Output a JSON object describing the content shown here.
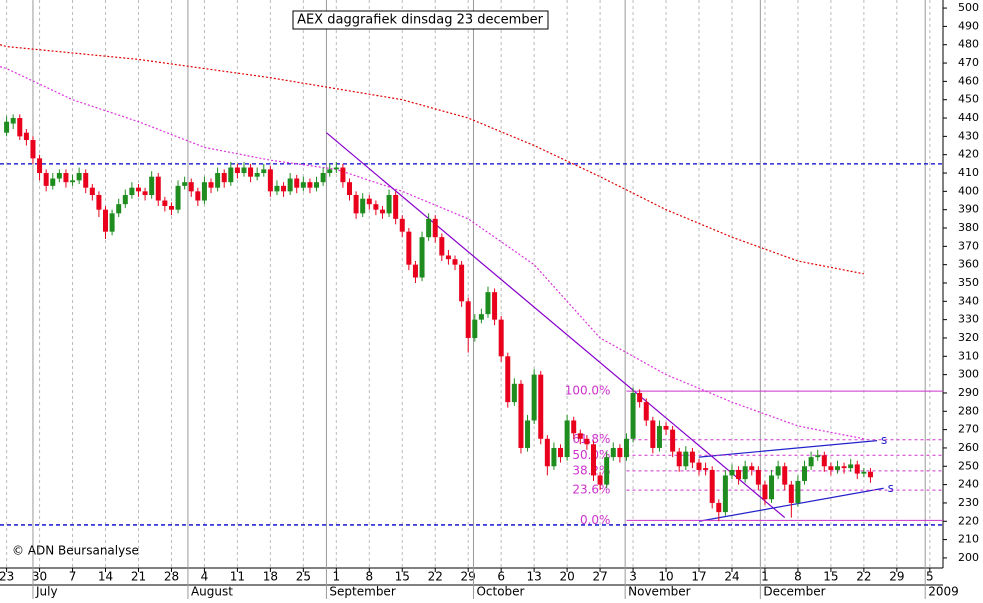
{
  "chart_data": {
    "type": "candlestick",
    "title": "AEX daggrafiek dinsdag 23 december",
    "annotation": "© ADN Beursanalyse",
    "up_color": "#1e8c1e",
    "down_color": "#e8001c",
    "xlim": [
      -1,
      142
    ],
    "ylim": [
      194.5,
      504.4
    ],
    "yticks": [
      200,
      210,
      220,
      230,
      240,
      250,
      260,
      270,
      280,
      290,
      300,
      310,
      320,
      330,
      340,
      350,
      360,
      370,
      380,
      390,
      400,
      410,
      420,
      430,
      440,
      450,
      460,
      470,
      480,
      490,
      500
    ],
    "xticks": [
      {
        "value": 0,
        "label": "23"
      },
      {
        "value": 5,
        "label": "30"
      },
      {
        "value": 10,
        "label": "7"
      },
      {
        "value": 15,
        "label": "14"
      },
      {
        "value": 20,
        "label": "21"
      },
      {
        "value": 25,
        "label": "28"
      },
      {
        "value": 30,
        "label": "4"
      },
      {
        "value": 35,
        "label": "11"
      },
      {
        "value": 40,
        "label": "18"
      },
      {
        "value": 45,
        "label": "25"
      },
      {
        "value": 50,
        "label": "1"
      },
      {
        "value": 55,
        "label": "8"
      },
      {
        "value": 60,
        "label": "15"
      },
      {
        "value": 65,
        "label": "22"
      },
      {
        "value": 70,
        "label": "29"
      },
      {
        "value": 75,
        "label": "6"
      },
      {
        "value": 80,
        "label": "13"
      },
      {
        "value": 85,
        "label": "20"
      },
      {
        "value": 90,
        "label": "27"
      },
      {
        "value": 95,
        "label": "3"
      },
      {
        "value": 100,
        "label": "10"
      },
      {
        "value": 105,
        "label": "17"
      },
      {
        "value": 110,
        "label": "24"
      },
      {
        "value": 115,
        "label": "1"
      },
      {
        "value": 120,
        "label": "8"
      },
      {
        "value": 125,
        "label": "15"
      },
      {
        "value": 130,
        "label": "22"
      },
      {
        "value": 135,
        "label": "29"
      },
      {
        "value": 140,
        "label": "5"
      }
    ],
    "months": [
      {
        "value": 4,
        "label": "July"
      },
      {
        "value": 27.5,
        "label": "August"
      },
      {
        "value": 48.5,
        "label": "September"
      },
      {
        "value": 70.8,
        "label": "October"
      },
      {
        "value": 93.8,
        "label": "November"
      },
      {
        "value": 114.3,
        "label": "December"
      },
      {
        "value": 139.3,
        "label": "2009"
      }
    ],
    "x": [
      0,
      1,
      2,
      3,
      4,
      5,
      6,
      7,
      8,
      9,
      10,
      11,
      12,
      13,
      14,
      15,
      16,
      17,
      18,
      19,
      20,
      21,
      22,
      23,
      24,
      25,
      26,
      27,
      28,
      29,
      30,
      31,
      32,
      33,
      34,
      35,
      36,
      37,
      38,
      39,
      40,
      41,
      42,
      43,
      44,
      45,
      46,
      47,
      48,
      49,
      50,
      51,
      52,
      53,
      54,
      55,
      56,
      57,
      58,
      59,
      60,
      61,
      62,
      63,
      64,
      65,
      66,
      67,
      68,
      69,
      70,
      71,
      72,
      73,
      74,
      75,
      76,
      77,
      78,
      79,
      80,
      81,
      82,
      83,
      84,
      85,
      86,
      87,
      88,
      89,
      90,
      91,
      92,
      93,
      94,
      95,
      96,
      97,
      98,
      99,
      100,
      101,
      102,
      103,
      104,
      105,
      106,
      107,
      108,
      109,
      110,
      111,
      112,
      113,
      114,
      115,
      116,
      117,
      118,
      119,
      120,
      121,
      122,
      123,
      124,
      125,
      126,
      127,
      128,
      129,
      130,
      131
    ],
    "ohlc": [
      [
        432,
        441,
        430,
        438
      ],
      [
        437,
        442,
        434,
        440
      ],
      [
        440,
        442,
        428,
        430
      ],
      [
        432,
        434,
        425,
        428
      ],
      [
        428,
        430,
        415,
        418
      ],
      [
        418,
        420,
        406,
        410
      ],
      [
        410,
        412,
        400,
        403
      ],
      [
        403,
        410,
        401,
        407
      ],
      [
        407,
        412,
        405,
        410
      ],
      [
        410,
        412,
        402,
        405
      ],
      [
        405,
        409,
        403,
        406
      ],
      [
        406,
        413,
        404,
        410
      ],
      [
        410,
        412,
        399,
        402
      ],
      [
        402,
        404,
        395,
        398
      ],
      [
        398,
        400,
        386,
        390
      ],
      [
        390,
        392,
        374,
        378
      ],
      [
        378,
        390,
        376,
        388
      ],
      [
        388,
        396,
        386,
        393
      ],
      [
        393,
        401,
        391,
        398
      ],
      [
        398,
        405,
        396,
        402
      ],
      [
        402,
        404,
        397,
        400
      ],
      [
        400,
        402,
        395,
        398
      ],
      [
        398,
        411,
        396,
        408
      ],
      [
        408,
        410,
        392,
        395
      ],
      [
        395,
        397,
        389,
        392
      ],
      [
        392,
        394,
        387,
        390
      ],
      [
        390,
        406,
        388,
        403
      ],
      [
        403,
        408,
        401,
        405
      ],
      [
        405,
        407,
        397,
        400
      ],
      [
        400,
        402,
        392,
        395
      ],
      [
        395,
        408,
        393,
        405
      ],
      [
        405,
        407,
        399,
        402
      ],
      [
        402,
        413,
        400,
        410
      ],
      [
        410,
        412,
        402,
        405
      ],
      [
        405,
        416,
        403,
        413
      ],
      [
        413,
        415,
        407,
        410
      ],
      [
        410,
        416,
        408,
        413
      ],
      [
        413,
        415,
        405,
        408
      ],
      [
        408,
        413,
        406,
        410
      ],
      [
        410,
        415,
        408,
        412
      ],
      [
        412,
        414,
        397,
        400
      ],
      [
        400,
        406,
        398,
        403
      ],
      [
        403,
        405,
        397,
        400
      ],
      [
        400,
        410,
        398,
        407
      ],
      [
        407,
        409,
        399,
        402
      ],
      [
        402,
        408,
        400,
        405
      ],
      [
        405,
        407,
        399,
        402
      ],
      [
        402,
        408,
        400,
        405
      ],
      [
        405,
        413,
        403,
        410
      ],
      [
        410,
        415,
        408,
        412
      ],
      [
        412,
        416,
        410,
        413
      ],
      [
        413,
        415,
        402,
        405
      ],
      [
        405,
        407,
        395,
        398
      ],
      [
        398,
        400,
        385,
        388
      ],
      [
        388,
        399,
        386,
        396
      ],
      [
        396,
        398,
        390,
        393
      ],
      [
        393,
        395,
        387,
        390
      ],
      [
        390,
        392,
        385,
        388
      ],
      [
        388,
        401,
        386,
        398
      ],
      [
        398,
        400,
        382,
        385
      ],
      [
        385,
        387,
        375,
        378
      ],
      [
        378,
        380,
        357,
        360
      ],
      [
        360,
        362,
        350,
        353
      ],
      [
        353,
        378,
        351,
        375
      ],
      [
        375,
        388,
        373,
        385
      ],
      [
        385,
        387,
        372,
        375
      ],
      [
        375,
        377,
        362,
        365
      ],
      [
        365,
        368,
        360,
        363
      ],
      [
        363,
        365,
        357,
        360
      ],
      [
        360,
        362,
        337,
        340
      ],
      [
        340,
        342,
        312,
        320
      ],
      [
        320,
        333,
        318,
        330
      ],
      [
        330,
        336,
        328,
        333
      ],
      [
        333,
        348,
        331,
        345
      ],
      [
        345,
        347,
        327,
        330
      ],
      [
        330,
        332,
        307,
        310
      ],
      [
        310,
        312,
        282,
        285
      ],
      [
        285,
        298,
        283,
        295
      ],
      [
        295,
        297,
        257,
        260
      ],
      [
        260,
        278,
        258,
        275
      ],
      [
        275,
        303,
        273,
        300
      ],
      [
        300,
        302,
        262,
        265
      ],
      [
        265,
        267,
        245,
        250
      ],
      [
        250,
        263,
        248,
        260
      ],
      [
        260,
        262,
        252,
        255
      ],
      [
        255,
        278,
        253,
        275
      ],
      [
        275,
        277,
        265,
        268
      ],
      [
        268,
        270,
        262,
        265
      ],
      [
        265,
        267,
        259,
        262
      ],
      [
        262,
        264,
        242,
        245
      ],
      [
        245,
        247,
        237,
        240
      ],
      [
        240,
        258,
        238,
        255
      ],
      [
        255,
        263,
        253,
        260
      ],
      [
        260,
        262,
        252,
        255
      ],
      [
        255,
        268,
        253,
        265
      ],
      [
        265,
        293,
        263,
        290
      ],
      [
        290,
        292,
        282,
        285
      ],
      [
        285,
        287,
        272,
        275
      ],
      [
        275,
        277,
        257,
        260
      ],
      [
        260,
        275,
        258,
        272
      ],
      [
        272,
        274,
        267,
        270
      ],
      [
        270,
        272,
        255,
        258
      ],
      [
        258,
        260,
        247,
        250
      ],
      [
        250,
        261,
        248,
        258
      ],
      [
        258,
        260,
        249,
        252
      ],
      [
        252,
        254,
        245,
        248
      ],
      [
        249,
        252,
        245,
        248
      ],
      [
        248,
        250,
        227,
        230
      ],
      [
        230,
        232,
        220,
        225
      ],
      [
        225,
        248,
        223,
        245
      ],
      [
        245,
        251,
        243,
        248
      ],
      [
        248,
        250,
        240,
        243
      ],
      [
        243,
        253,
        241,
        250
      ],
      [
        250,
        252,
        245,
        248
      ],
      [
        248,
        250,
        237,
        240
      ],
      [
        240,
        242,
        229,
        232
      ],
      [
        232,
        248,
        230,
        245
      ],
      [
        245,
        253,
        243,
        250
      ],
      [
        250,
        252,
        237,
        240
      ],
      [
        240,
        242,
        222,
        230
      ],
      [
        230,
        245,
        228,
        242
      ],
      [
        242,
        253,
        240,
        250
      ],
      [
        250,
        258,
        248,
        255
      ],
      [
        255,
        259,
        253,
        256
      ],
      [
        256,
        258,
        247,
        250
      ],
      [
        250,
        252,
        245,
        248
      ],
      [
        248,
        253,
        246,
        250
      ],
      [
        250,
        252,
        246,
        249
      ],
      [
        249,
        254,
        247,
        251
      ],
      [
        251,
        253,
        243,
        246
      ],
      [
        246,
        249,
        244,
        247
      ],
      [
        247,
        249,
        241,
        244
      ]
    ],
    "moving_averages": [
      {
        "color": "#e00000",
        "x": [
          -1,
          0,
          20,
          40,
          60,
          70,
          80,
          90,
          100,
          110,
          120,
          130
        ],
        "values": [
          480,
          479,
          472,
          462,
          450,
          440,
          425,
          408,
          390,
          375,
          362,
          355
        ]
      },
      {
        "color": "#dd33dd",
        "x": [
          -1,
          0,
          10,
          20,
          30,
          40,
          50,
          60,
          70,
          80,
          90,
          100,
          110,
          120,
          130
        ],
        "values": [
          468,
          467,
          450,
          438,
          424,
          417,
          412,
          400,
          385,
          360,
          320,
          300,
          285,
          272,
          265
        ]
      }
    ],
    "levels": [
      {
        "value": 415,
        "color": "#0000cc"
      },
      {
        "value": 218,
        "color": "#0000cc"
      }
    ],
    "trendlines": [
      {
        "color": "#8800cc",
        "x": [
          48.5,
          118
        ],
        "values": [
          432,
          222
        ]
      },
      {
        "color": "#2222cc",
        "x": [
          105,
          132
        ],
        "values": [
          255,
          264
        ],
        "label": "s"
      },
      {
        "color": "#2222cc",
        "x": [
          105,
          133
        ],
        "values": [
          220,
          238
        ],
        "label": "s"
      }
    ],
    "fibonacci": {
      "color": "#cc33cc",
      "start": 94,
      "levels": [
        {
          "value": 291,
          "label": "100.0%"
        },
        {
          "value": 264.5,
          "label": "61.8%"
        },
        {
          "value": 256,
          "label": "50.0%"
        },
        {
          "value": 247.5,
          "label": "38.2%"
        },
        {
          "value": 237,
          "label": "23.6%"
        },
        {
          "value": 220.5,
          "label": "0.0%"
        }
      ]
    }
  }
}
